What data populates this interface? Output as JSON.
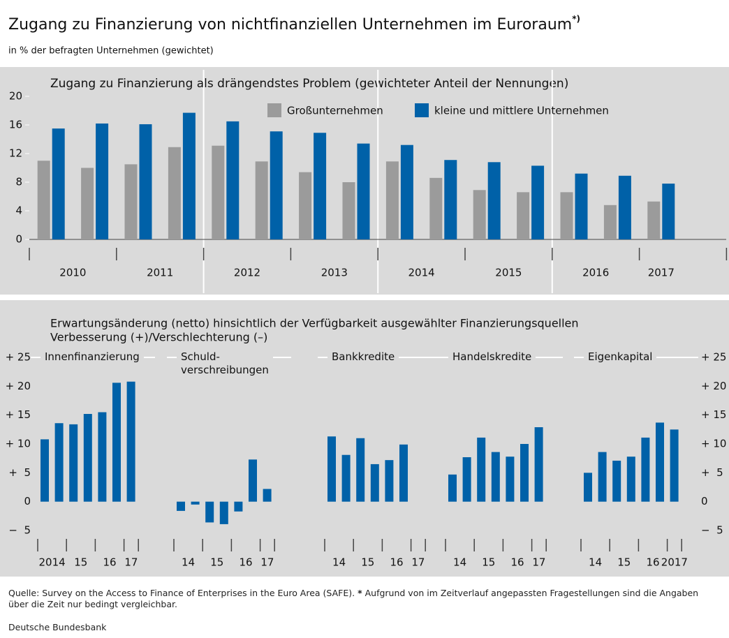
{
  "header": {
    "title": "Zugang zu Finanzierung von nichtfinanziellen Unternehmen im Euroraum",
    "title_note": "*)",
    "subtitle": "in % der befragten Unternehmen (gewichtet)"
  },
  "section_title": [
    "Erwartungsänderung (netto) hinsichtlich der Verfügbarkeit ausgewählter Finanzierungsquellen",
    "Verbesserung (+)/Verschlechterung (–)"
  ],
  "chart_data": [
    {
      "type": "bar",
      "title": "Zugang zu Finanzierung als drängendstes Problem (gewichteter Anteil der Nennungen)",
      "categories": [
        null,
        null,
        null,
        null,
        null,
        null,
        null,
        null,
        null,
        null,
        null,
        null,
        null,
        null,
        null
      ],
      "category_groups": [
        "2010",
        "2011",
        "2012",
        "2013",
        "2014",
        "2015",
        "2016",
        "2017"
      ],
      "series": [
        {
          "name": "Großunternehmen",
          "color": "#9b9b9b",
          "values": [
            11.0,
            10.0,
            10.5,
            12.9,
            13.1,
            10.9,
            9.4,
            8.0,
            10.9,
            8.6,
            6.9,
            6.6,
            6.6,
            4.8,
            5.3
          ]
        },
        {
          "name": "kleine und mittlere Unternehmen",
          "color": "#0061a8",
          "values": [
            15.5,
            16.2,
            16.1,
            17.7,
            16.5,
            15.1,
            14.9,
            13.4,
            13.2,
            11.1,
            10.8,
            10.3,
            9.2,
            8.9,
            7.8
          ]
        }
      ],
      "ylim": [
        0,
        20
      ],
      "yticks": [
        0,
        4,
        8,
        12,
        16,
        20
      ]
    },
    {
      "type": "bar",
      "title": "Innenfinanzierung",
      "categories": [
        null,
        null,
        null,
        null,
        null,
        null,
        null
      ],
      "category_groups": [
        "2014",
        "15",
        "16",
        "17"
      ],
      "color": "#0061a8",
      "values": [
        10.8,
        13.6,
        13.4,
        15.2,
        15.5,
        20.6,
        20.8
      ],
      "ylim": [
        -5,
        25
      ],
      "yticks": [
        {
          "value": 25,
          "label": "+ 25"
        },
        {
          "value": 20,
          "label": "+ 20"
        },
        {
          "value": 15,
          "label": "+ 15"
        },
        {
          "value": 10,
          "label": "+ 10"
        },
        {
          "value": 5,
          "label": "+  5"
        },
        0,
        {
          "value": -5,
          "label": "−  5"
        }
      ]
    },
    {
      "type": "bar",
      "title": "Schuld-\nverschreibungen",
      "categories": [
        null,
        null,
        null,
        null,
        null,
        null,
        null
      ],
      "category_groups": [
        "14",
        "15",
        "16",
        "17"
      ],
      "color": "#0061a8",
      "values": [
        -1.6,
        -0.5,
        -3.6,
        -3.9,
        -1.7,
        7.3,
        2.2
      ],
      "ylim": [
        -5,
        25
      ]
    },
    {
      "type": "bar",
      "title": "Bankkredite",
      "categories": [
        null,
        null,
        null,
        null,
        null,
        null,
        null
      ],
      "category_groups": [
        "14",
        "15",
        "16",
        "17"
      ],
      "color": "#0061a8",
      "values": [
        11.3,
        8.1,
        11.0,
        6.5,
        7.2,
        9.9,
        null
      ],
      "ylim": [
        -5,
        25
      ]
    },
    {
      "type": "bar",
      "title": "Handelskredite",
      "categories": [
        null,
        null,
        null,
        null,
        null,
        null,
        null
      ],
      "category_groups": [
        "14",
        "15",
        "16",
        "17"
      ],
      "color": "#0061a8",
      "values": [
        4.7,
        7.7,
        11.1,
        8.6,
        7.8,
        10.0,
        12.9
      ],
      "ylim": [
        -5,
        25
      ]
    },
    {
      "type": "bar",
      "title": "Eigenkapital",
      "categories": [
        null,
        null,
        null,
        null,
        null,
        null,
        null
      ],
      "category_groups": [
        "14",
        "15",
        "16",
        "2017"
      ],
      "color": "#0061a8",
      "values": [
        5.0,
        8.6,
        7.1,
        7.8,
        11.1,
        13.7,
        12.5
      ],
      "ylim": [
        -5,
        25
      ],
      "yticks": [
        {
          "value": 25,
          "label": "+ 25"
        },
        {
          "value": 20,
          "label": "+ 20"
        },
        {
          "value": 15,
          "label": "+ 15"
        },
        {
          "value": 10,
          "label": "+ 10"
        },
        {
          "value": 5,
          "label": "+  5"
        },
        0,
        {
          "value": -5,
          "label": "−  5"
        }
      ]
    }
  ],
  "footer": {
    "source": "Quelle: Survey on the Access to Finance of Enterprises in the Euro Area (SAFE).",
    "note_marker": "*",
    "note": "Aufgrund von im Zeitverlauf angepassten Fragestellungen sind die Angaben über die Zeit nur bedingt vergleichbar.",
    "publisher": "Deutsche Bundesbank"
  }
}
